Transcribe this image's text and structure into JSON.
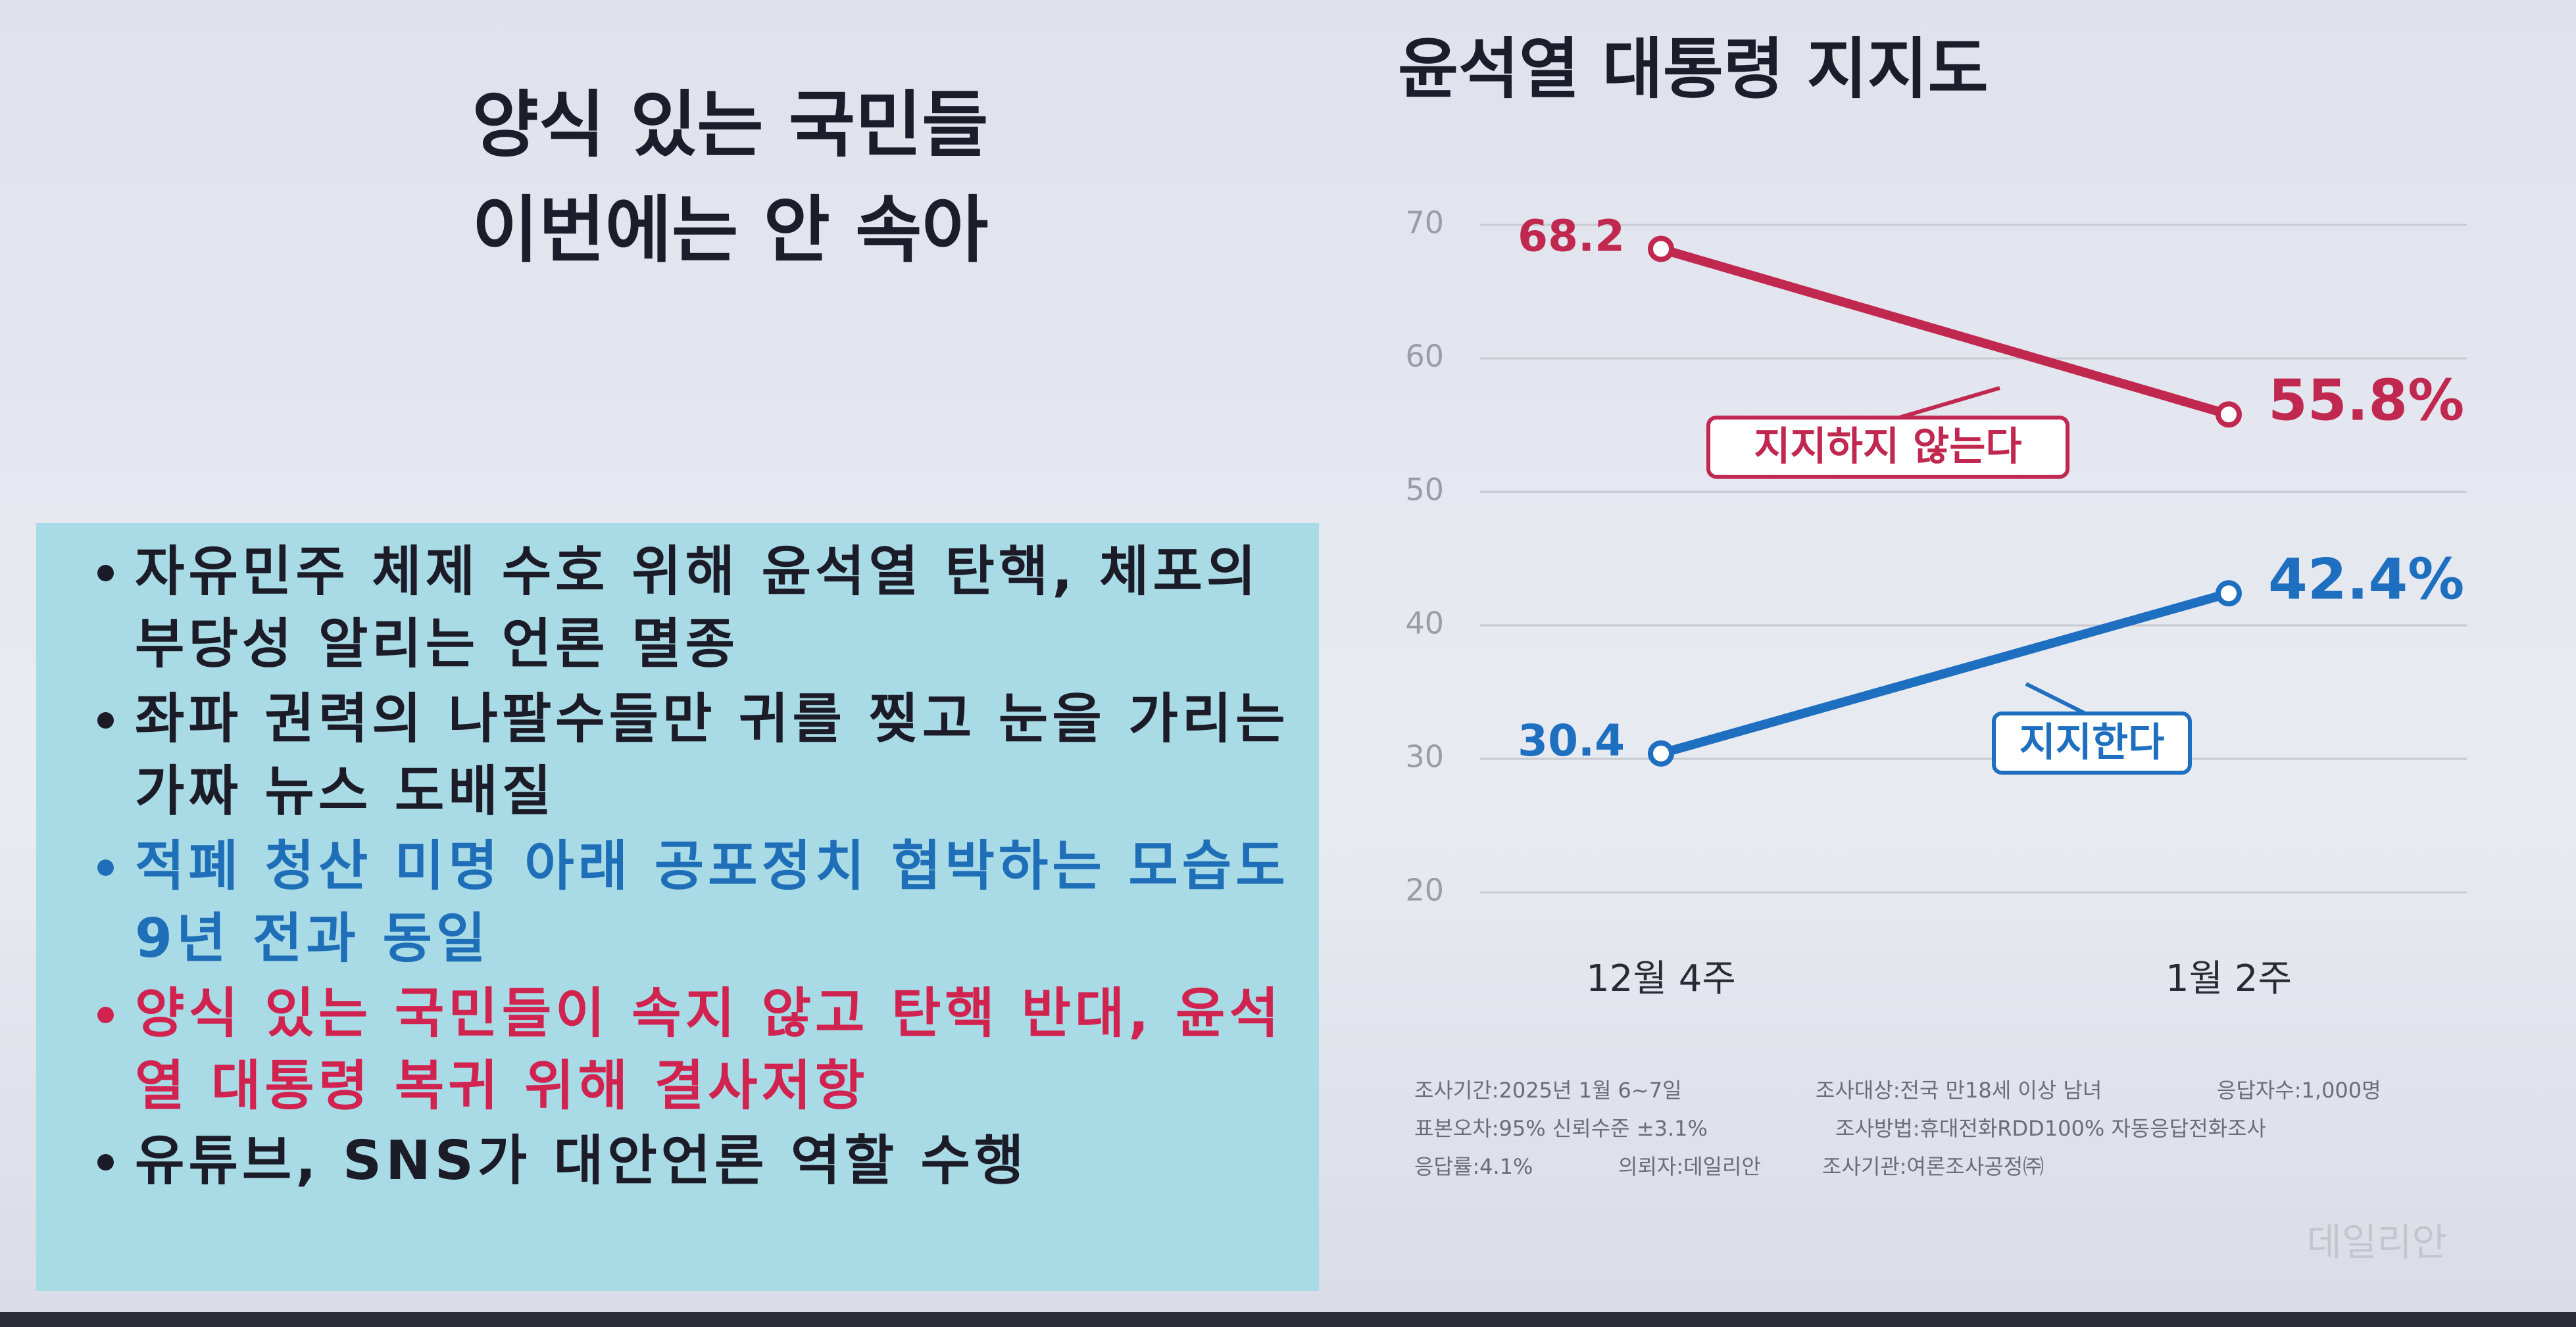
{
  "slide": {
    "title_lines": [
      "양식 있는 국민들",
      "이번에는 안 속아"
    ],
    "items": [
      {
        "text": "자유민주 체제 수호 위해 윤석열 탄핵, 체포의 부당성 알리는 언론 멸종",
        "color": "#1c1c28"
      },
      {
        "text": "좌파 권력의 나팔수들만 귀를 찢고 눈을 가리는 가짜 뉴스 도배질",
        "color": "#1c1c28"
      },
      {
        "text": "적폐 청산 미명 아래 공포정치 협박하는 모습도 9년 전과 동일",
        "color": "#1f6fb8"
      },
      {
        "text": "양식 있는 국민들이 속지 않고 탄핵 반대, 윤석열 대통령 복귀 위해 결사저항",
        "color": "#d0234f"
      },
      {
        "text": "유튜브, SNS가 대안언론 역할 수행",
        "color": "#1c1c28"
      }
    ]
  },
  "chart_data": {
    "type": "line",
    "title": "윤석열 대통령 지지도",
    "categories": [
      "12월 4주",
      "1월 2주"
    ],
    "series": [
      {
        "name": "지지하지 않는다",
        "color": "#c0284f",
        "values": [
          68.2,
          55.8
        ],
        "value_labels": [
          "68.2",
          "55.8%"
        ]
      },
      {
        "name": "지지한다",
        "color": "#1f6fc0",
        "values": [
          30.4,
          42.4
        ],
        "value_labels": [
          "30.4",
          "42.4%"
        ]
      }
    ],
    "ylim": [
      20,
      70
    ],
    "yticks": [
      20,
      30,
      40,
      50,
      60,
      70
    ],
    "grid": true,
    "footnotes": [
      "조사기간:2025년 1월 6~7일",
      "조사대상:전국 만18세 이상 남녀",
      "응답자수:1,000명",
      "표본오차:95% 신뢰수준 ±3.1%",
      "조사방법:휴대전화RDD100% 자동응답전화조사",
      "응답률:4.1%",
      "의뢰자:데일리안",
      "조사기관:여론조사공정㈜"
    ],
    "watermark": "데일리안"
  }
}
